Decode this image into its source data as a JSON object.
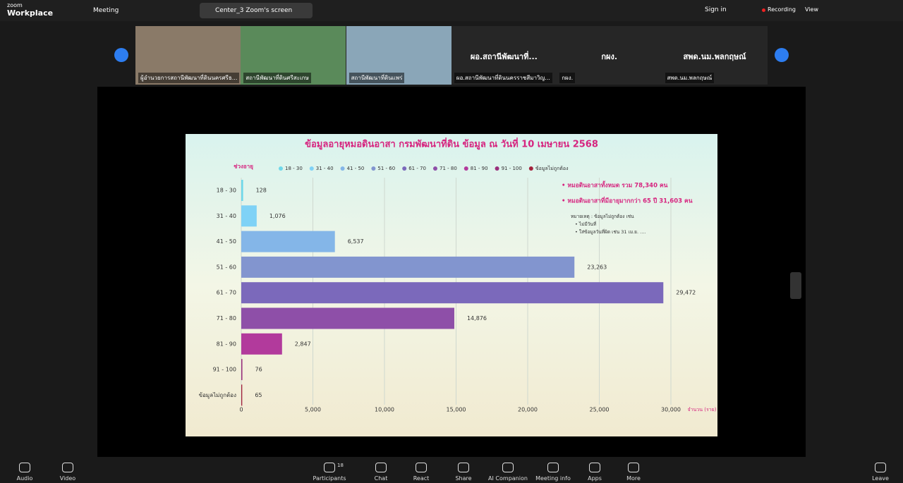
{
  "top_bar": {
    "brand_top": "zoom",
    "brand": "Workplace",
    "meeting": "Meeting",
    "tab": "Center_3 Zoom's screen",
    "sign_in": "Sign in",
    "recording": "Recording",
    "view": "View"
  },
  "gallery": {
    "tiles": [
      {
        "label": "ผู้อำนวยการสถานีพัฒนาที่ดินนครศรีธ..."
      },
      {
        "label": "สถานีพัฒนาที่ดินศรีสะเกษ"
      },
      {
        "label": "สถานีพัฒนาที่ดินแพร่"
      },
      {
        "big": "ผอ.สถานีพัฒนาที่...",
        "label": "ผอ.สถานีพัฒนาที่ดินนครราชสีมาวิญ..."
      },
      {
        "big": "กผง.",
        "label": "กผง."
      },
      {
        "big": "สพด.นม.พลกฤษณ์",
        "label": "สพด.นม.พลกฤษณ์"
      }
    ]
  },
  "toolbar": {
    "left": [
      "Audio",
      "Video"
    ],
    "center": [
      "Participants",
      "Chat",
      "React",
      "Share",
      "AI Companion",
      "Meeting info",
      "Apps",
      "More"
    ],
    "participants_count": "18",
    "right": "Leave"
  },
  "chart_data": {
    "type": "bar",
    "orientation": "horizontal",
    "title": "ข้อมูลอายุหมอดินอาสา กรมพัฒนาที่ดิน ข้อมูล ณ วันที่ 10 เมษายน 2568",
    "y_label": "ช่วงอายุ",
    "x_label": "จำนวน (ราย)",
    "categories": [
      "18 - 30",
      "31 - 40",
      "41 - 50",
      "51 - 60",
      "61 - 70",
      "71 - 80",
      "81 - 90",
      "91 - 100",
      "ข้อมูลไม่ถูกต้อง"
    ],
    "values": [
      128,
      1076,
      6537,
      23263,
      29472,
      14876,
      2847,
      76,
      65
    ],
    "value_labels": [
      "128",
      "1,076",
      "6,537",
      "23,263",
      "29,472",
      "14,876",
      "2,847",
      "76",
      "65"
    ],
    "colors": [
      "#6fd8ea",
      "#7fd2f6",
      "#84b6e8",
      "#8295cf",
      "#7b69bb",
      "#8e4fa8",
      "#b23a9c",
      "#9a2f7c",
      "#a3223c"
    ],
    "xlim": [
      0,
      30000
    ],
    "xticks": [
      0,
      {
        "value": 5000,
        "label": "5,000"
      },
      {
        "value": 10000,
        "label": "10,000"
      },
      {
        "value": 15000,
        "label": "15,000"
      },
      {
        "value": 20000,
        "label": "20,000"
      },
      {
        "value": 25000,
        "label": "25,000"
      },
      {
        "value": 30000,
        "label": "30,000"
      }
    ],
    "grid": true,
    "annotations": [
      "• หมอดินอาสาทั้งหมด รวม 78,340 คน",
      "• หมอดินอาสาที่มีอายุมากกว่า 65 ปี 31,603 คน"
    ],
    "note": [
      "หมายเหตุ : ข้อมูลไม่ถูกต้อง  เช่น",
      "• ไม่มีวันที่",
      "• ใส่ข้อมูลวันที่ผิด เช่น 31 เม.ย. ...."
    ]
  }
}
